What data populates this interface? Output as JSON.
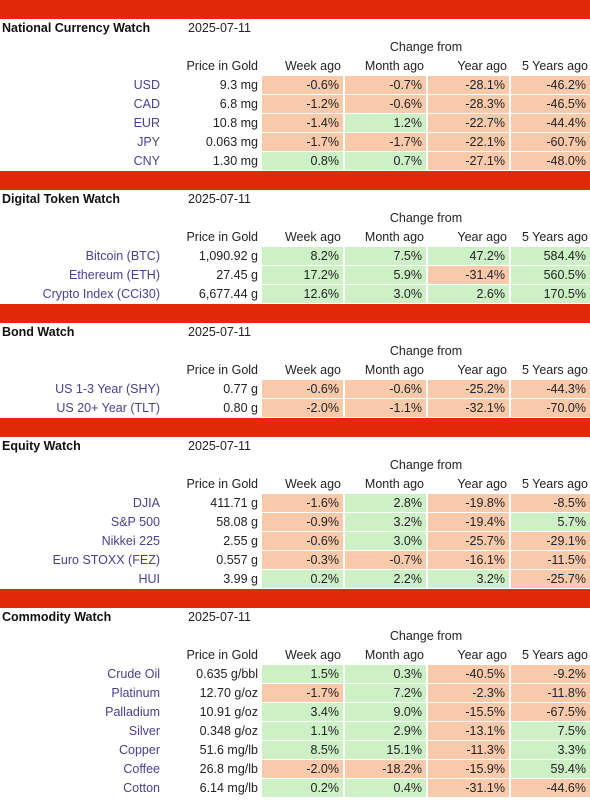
{
  "colors": {
    "bar": "#e02a0a",
    "positive": "#cdf0c6",
    "negative": "#f8c9aa",
    "label": "#4b3f91"
  },
  "sections": [
    {
      "title": "National Currency Watch",
      "date": "2025-07-11",
      "change_from": "Change from",
      "headers": [
        "Price in Gold",
        "Week ago",
        "Month ago",
        "Year ago",
        "5 Years ago"
      ],
      "rows": [
        {
          "label": "USD",
          "price": "9.3 mg",
          "changes": [
            "-0.6%",
            "-0.7%",
            "-28.1%",
            "-46.2%"
          ]
        },
        {
          "label": "CAD",
          "price": "6.8 mg",
          "changes": [
            "-1.2%",
            "-0.6%",
            "-28.3%",
            "-46.5%"
          ]
        },
        {
          "label": "EUR",
          "price": "10.8 mg",
          "changes": [
            "-1.4%",
            "1.2%",
            "-22.7%",
            "-44.4%"
          ]
        },
        {
          "label": "JPY",
          "price": "0.063 mg",
          "changes": [
            "-1.7%",
            "-1.7%",
            "-22.1%",
            "-60.7%"
          ]
        },
        {
          "label": "CNY",
          "price": "1.30 mg",
          "changes": [
            "0.8%",
            "0.7%",
            "-27.1%",
            "-48.0%"
          ]
        }
      ]
    },
    {
      "title": "Digital Token Watch",
      "date": "2025-07-11",
      "change_from": "Change from",
      "headers": [
        "Price in Gold",
        "Week ago",
        "Month ago",
        "Year ago",
        "5 Years ago"
      ],
      "rows": [
        {
          "label": "Bitcoin (BTC)",
          "price": "1,090.92 g",
          "changes": [
            "8.2%",
            "7.5%",
            "47.2%",
            "584.4%"
          ]
        },
        {
          "label": "Ethereum (ETH)",
          "price": "27.45 g",
          "changes": [
            "17.2%",
            "5.9%",
            "-31.4%",
            "560.5%"
          ]
        },
        {
          "label": "Crypto Index (CCi30)",
          "price": "6,677.44 g",
          "changes": [
            "12.6%",
            "3.0%",
            "2.6%",
            "170.5%"
          ]
        }
      ]
    },
    {
      "title": "Bond Watch",
      "date": "2025-07-11",
      "change_from": "Change from",
      "headers": [
        "Price in Gold",
        "Week ago",
        "Month ago",
        "Year ago",
        "5 Years ago"
      ],
      "rows": [
        {
          "label": "US 1-3 Year (SHY)",
          "price": "0.77 g",
          "changes": [
            "-0.6%",
            "-0.6%",
            "-25.2%",
            "-44.3%"
          ]
        },
        {
          "label": "US 20+ Year (TLT)",
          "price": "0.80 g",
          "changes": [
            "-2.0%",
            "-1.1%",
            "-32.1%",
            "-70.0%"
          ]
        }
      ]
    },
    {
      "title": "Equity Watch",
      "date": "2025-07-11",
      "change_from": "Change from",
      "headers": [
        "Price in Gold",
        "Week ago",
        "Month ago",
        "Year ago",
        "5 Years ago"
      ],
      "rows": [
        {
          "label": "DJIA",
          "price": "411.71 g",
          "changes": [
            "-1.6%",
            "2.8%",
            "-19.8%",
            "-8.5%"
          ]
        },
        {
          "label": "S&P 500",
          "price": "58.08 g",
          "changes": [
            "-0.9%",
            "3.2%",
            "-19.4%",
            "5.7%"
          ]
        },
        {
          "label": "Nikkei 225",
          "price": "2.55 g",
          "changes": [
            "-0.6%",
            "3.0%",
            "-25.7%",
            "-29.1%"
          ]
        },
        {
          "label": "Euro STOXX (FEZ)",
          "price": "0.557 g",
          "changes": [
            "-0.3%",
            "-0.7%",
            "-16.1%",
            "-11.5%"
          ]
        },
        {
          "label": "HUI",
          "price": "3.99 g",
          "changes": [
            "0.2%",
            "2.2%",
            "3.2%",
            "-25.7%"
          ]
        }
      ]
    },
    {
      "title": "Commodity Watch",
      "date": "2025-07-11",
      "change_from": "Change from",
      "headers": [
        "Price in Gold",
        "Week ago",
        "Month ago",
        "Year ago",
        "5 Years ago"
      ],
      "rows": [
        {
          "label": "Crude Oil",
          "price": "0.635 g/bbl",
          "changes": [
            "1.5%",
            "0.3%",
            "-40.5%",
            "-9.2%"
          ]
        },
        {
          "label": "Platinum",
          "price": "12.70 g/oz",
          "changes": [
            "-1.7%",
            "7.2%",
            "-2.3%",
            "-11.8%"
          ]
        },
        {
          "label": "Palladium",
          "price": "10.91 g/oz",
          "changes": [
            "3.4%",
            "9.0%",
            "-15.5%",
            "-67.5%"
          ]
        },
        {
          "label": "Silver",
          "price": "0.348 g/oz",
          "changes": [
            "1.1%",
            "2.9%",
            "-13.1%",
            "7.5%"
          ]
        },
        {
          "label": "Copper",
          "price": "51.6 mg/lb",
          "changes": [
            "8.5%",
            "15.1%",
            "-11.3%",
            "3.3%"
          ]
        },
        {
          "label": "Coffee",
          "price": "26.8 mg/lb",
          "changes": [
            "-2.0%",
            "-18.2%",
            "-15.9%",
            "59.4%"
          ]
        },
        {
          "label": "Cotton",
          "price": "6.14 mg/lb",
          "changes": [
            "0.2%",
            "0.4%",
            "-31.1%",
            "-44.6%"
          ]
        }
      ]
    }
  ]
}
